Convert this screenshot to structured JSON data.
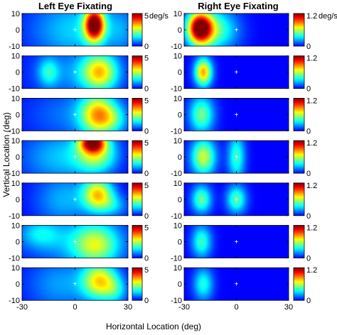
{
  "chart_data": {
    "type": "heatmap",
    "xlabel": "Horizontal Location (deg)",
    "ylabel": "Vertical Location (deg)",
    "x_range": [
      -30,
      30
    ],
    "y_range": [
      -10,
      10
    ],
    "x_ticks": [
      "-30",
      "0",
      "30"
    ],
    "y_ticks": [
      "10",
      "0",
      "-10"
    ],
    "colormap": "jet",
    "fixation_marker": "+",
    "fixation_location": [
      0,
      0
    ],
    "columns": [
      {
        "title": "Left Eye Fixating",
        "colorbar_max": 5,
        "colorbar_ticks": [
          "5",
          "0"
        ],
        "colorbar_unit": "deg/s",
        "panels": [
          {
            "blobs": [
              {
                "x": 11,
                "y": 3,
                "sx": 4,
                "sy": 7,
                "amp": 4.9
              },
              {
                "x": 0,
                "y": 0,
                "sx": 18,
                "sy": 14,
                "amp": 1.2
              },
              {
                "x": 26,
                "y": 0,
                "sx": 6,
                "sy": 10,
                "amp": 0.6
              }
            ]
          },
          {
            "blobs": [
              {
                "x": 14,
                "y": 0,
                "sx": 7,
                "sy": 8,
                "amp": 2.7
              },
              {
                "x": -15,
                "y": 0,
                "sx": 4,
                "sy": 6,
                "amp": 1.2
              },
              {
                "x": 0,
                "y": 0,
                "sx": 18,
                "sy": 12,
                "amp": 0.8
              }
            ]
          },
          {
            "blobs": [
              {
                "x": 13,
                "y": 0,
                "sx": 7,
                "sy": 9,
                "amp": 2.8
              },
              {
                "x": 22,
                "y": -3,
                "sx": 6,
                "sy": 6,
                "amp": 0.9
              },
              {
                "x": 0,
                "y": 0,
                "sx": 20,
                "sy": 12,
                "amp": 0.7
              }
            ]
          },
          {
            "blobs": [
              {
                "x": 10,
                "y": 9,
                "sx": 5,
                "sy": 4,
                "amp": 3.8
              },
              {
                "x": 12,
                "y": 2,
                "sx": 8,
                "sy": 8,
                "amp": 2.2
              },
              {
                "x": -8,
                "y": 0,
                "sx": 16,
                "sy": 12,
                "amp": 1.1
              }
            ]
          },
          {
            "blobs": [
              {
                "x": 13,
                "y": 3,
                "sx": 6,
                "sy": 7,
                "amp": 2.9
              },
              {
                "x": -6,
                "y": 0,
                "sx": 12,
                "sy": 12,
                "amp": 1.0
              },
              {
                "x": 22,
                "y": -4,
                "sx": 6,
                "sy": 5,
                "amp": 0.9
              }
            ]
          },
          {
            "blobs": [
              {
                "x": 12,
                "y": -2,
                "sx": 9,
                "sy": 9,
                "amp": 2.0
              },
              {
                "x": -20,
                "y": 5,
                "sx": 8,
                "sy": 6,
                "amp": 1.0
              },
              {
                "x": 0,
                "y": 0,
                "sx": 20,
                "sy": 12,
                "amp": 0.9
              }
            ]
          },
          {
            "blobs": [
              {
                "x": 14,
                "y": 2,
                "sx": 7,
                "sy": 8,
                "amp": 2.8
              },
              {
                "x": 23,
                "y": -4,
                "sx": 5,
                "sy": 6,
                "amp": 1.0
              },
              {
                "x": -8,
                "y": 0,
                "sx": 14,
                "sy": 12,
                "amp": 0.9
              }
            ]
          }
        ]
      },
      {
        "title": "Right Eye Fixating",
        "colorbar_max": 1.2,
        "colorbar_ticks": [
          "1.2",
          "0"
        ],
        "colorbar_unit": "deg/s",
        "panels": [
          {
            "blobs": [
              {
                "x": -21,
                "y": 1,
                "sx": 5,
                "sy": 7,
                "amp": 1.18
              },
              {
                "x": -12,
                "y": 0,
                "sx": 9,
                "sy": 9,
                "amp": 0.45
              }
            ]
          },
          {
            "blobs": [
              {
                "x": -19,
                "y": 0,
                "sx": 3.5,
                "sy": 6,
                "amp": 0.8
              }
            ]
          },
          {
            "blobs": [
              {
                "x": -20,
                "y": 0,
                "sx": 5,
                "sy": 8,
                "amp": 0.5
              }
            ]
          },
          {
            "blobs": [
              {
                "x": -19,
                "y": 0,
                "sx": 5,
                "sy": 8,
                "amp": 0.62
              },
              {
                "x": 0,
                "y": 0,
                "sx": 3.5,
                "sy": 10,
                "amp": 0.42
              }
            ]
          },
          {
            "blobs": [
              {
                "x": -20,
                "y": 0,
                "sx": 4,
                "sy": 6,
                "amp": 0.48
              },
              {
                "x": 0,
                "y": 0,
                "sx": 4,
                "sy": 6,
                "amp": 0.46
              }
            ]
          },
          {
            "blobs": [
              {
                "x": -20,
                "y": 0,
                "sx": 4,
                "sy": 7,
                "amp": 0.42
              }
            ]
          },
          {
            "blobs": [
              {
                "x": -19,
                "y": 0,
                "sx": 4,
                "sy": 7,
                "amp": 0.38
              }
            ]
          }
        ]
      }
    ]
  }
}
